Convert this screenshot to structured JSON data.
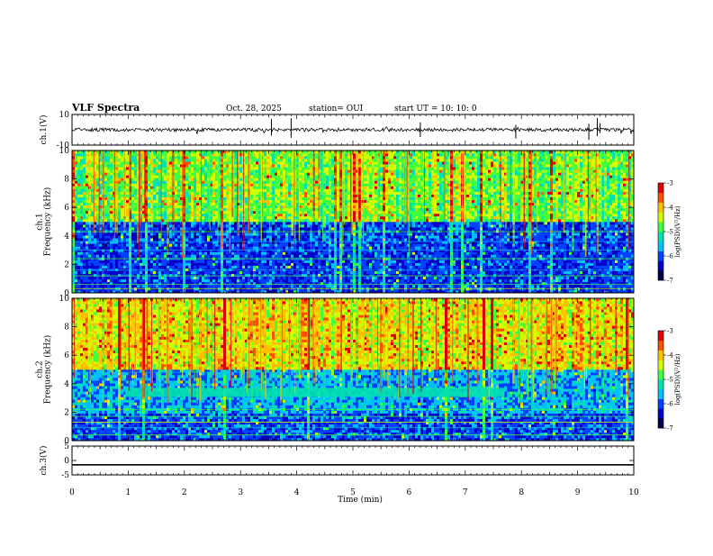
{
  "header": {
    "title": "VLF Spectra",
    "date": "Oct. 28, 2025",
    "station": "station= OUI",
    "start_ut": "start  UT =   10: 10: 0"
  },
  "colors": {
    "spectrogram_scale": [
      "#00004a",
      "#0000c8",
      "#0040ff",
      "#00c0ff",
      "#00e0b0",
      "#40ff40",
      "#d0ff00",
      "#ffc000",
      "#ff5000",
      "#e00000"
    ],
    "trace": "#000000"
  },
  "chart_data": [
    {
      "type": "line",
      "panel": "ch1-waveform",
      "ylabel": "ch.1(V)",
      "ylim": [
        -10,
        10
      ],
      "yticks": [
        "10",
        "-10"
      ],
      "baseline": 0,
      "xlim": [
        0,
        10
      ]
    },
    {
      "type": "heatmap",
      "panel": "ch1-spectrogram",
      "ylabel": "ch.1\nFrequency (kHz)",
      "ylim": [
        0,
        10
      ],
      "yticks": [
        "0",
        "2",
        "4",
        "6",
        "8",
        "10"
      ],
      "xlim": [
        0,
        10
      ],
      "colorbar": {
        "label": "log(PSD)(V²/Hz)",
        "range": [
          -7,
          -3
        ],
        "ticks": [
          "-3",
          "-4",
          "-5",
          "-6",
          "-7"
        ]
      }
    },
    {
      "type": "heatmap",
      "panel": "ch2-spectrogram",
      "ylabel": "ch.2\nFrequency (kHz)",
      "ylim": [
        0,
        10
      ],
      "yticks": [
        "0",
        "2",
        "4",
        "6",
        "8",
        "10"
      ],
      "xlim": [
        0,
        10
      ],
      "colorbar": {
        "label": "log(PSD)(V²/Hz)",
        "range": [
          -7,
          -3
        ],
        "ticks": [
          "-3",
          "-4",
          "-5",
          "-6",
          "-7"
        ]
      }
    },
    {
      "type": "line",
      "panel": "ch3-waveform",
      "ylabel": "ch.3(V)",
      "ylim": [
        -5,
        5
      ],
      "yticks": [
        "5",
        "0",
        "-5"
      ],
      "level": -1.5,
      "xlim": [
        0,
        10
      ],
      "xlabel": "Time (min)",
      "xticks": [
        "0",
        "1",
        "2",
        "3",
        "4",
        "5",
        "6",
        "7",
        "8",
        "9",
        "10"
      ]
    }
  ]
}
